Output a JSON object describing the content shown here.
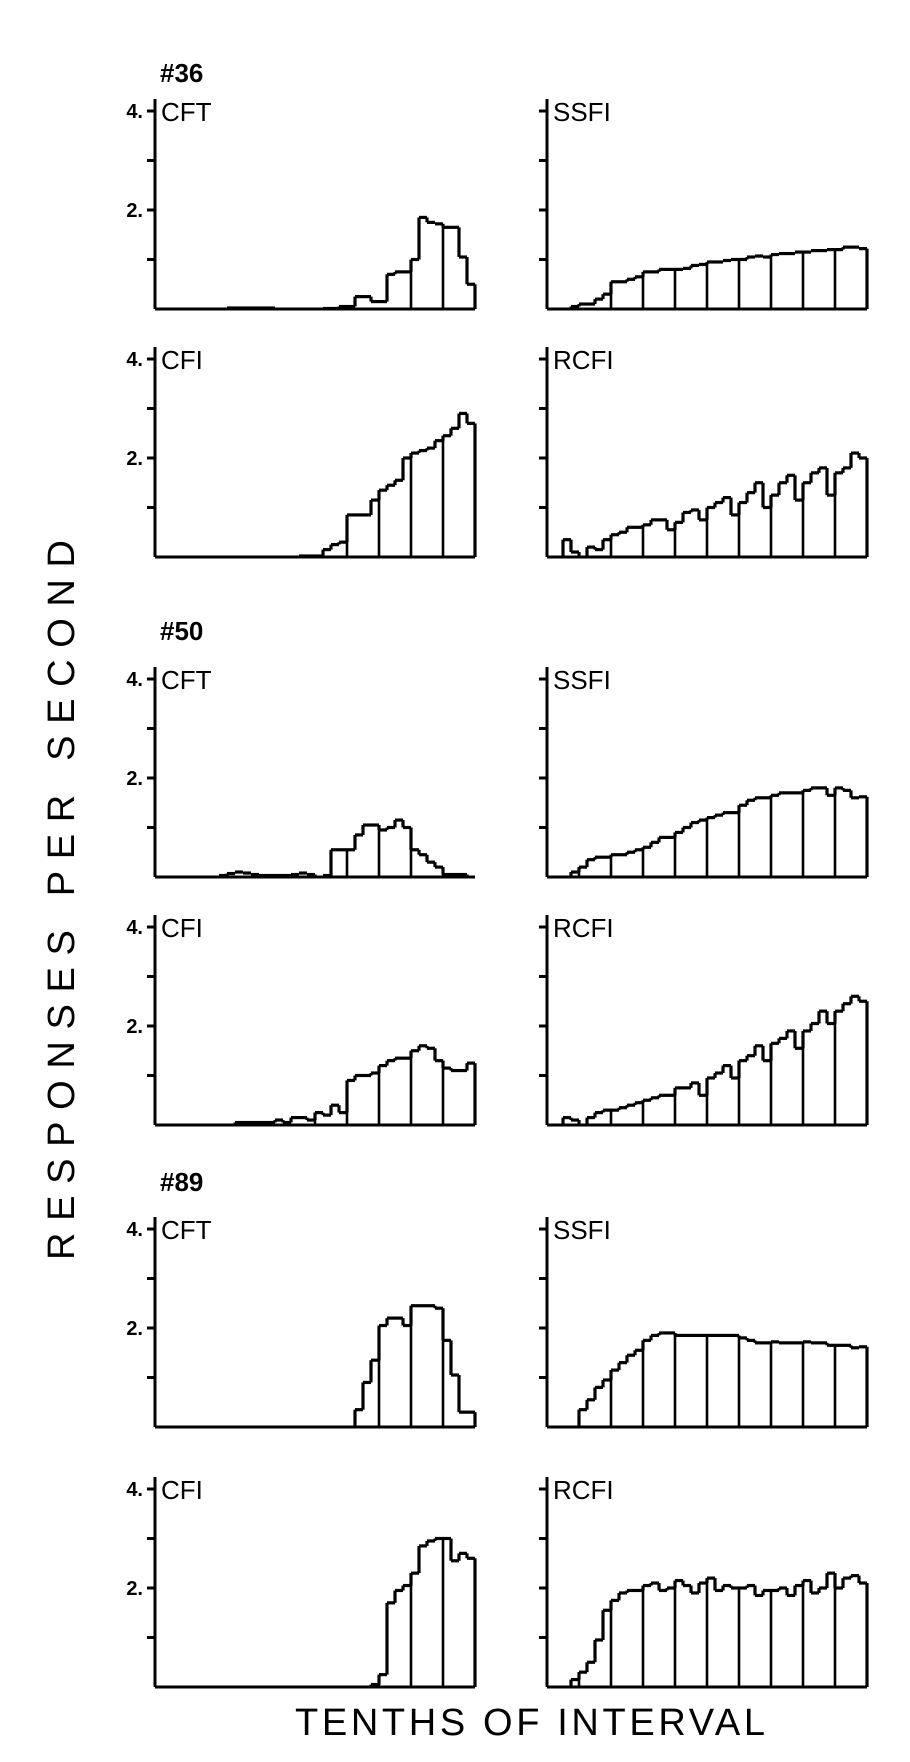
{
  "figure": {
    "ylabel": "RESPONSES PER SECOND",
    "xlabel": "TENTHS OF INTERVAL",
    "subjects": [
      "#36",
      "#50",
      "#89"
    ]
  },
  "chart_data": [
    {
      "type": "bar",
      "subject": "#36",
      "title": "CFT",
      "yticks": [
        "4.",
        "2."
      ],
      "ylim": [
        0,
        4
      ],
      "grid": false,
      "values": [
        0,
        0,
        0,
        0,
        0,
        0,
        0,
        0,
        0,
        0.02,
        0.02,
        0.02,
        0.02,
        0.02,
        0.02,
        0,
        0,
        0,
        0,
        0,
        0,
        0.01,
        0.01,
        0.05,
        0.05,
        0.25,
        0.25,
        0.15,
        0.15,
        0.7,
        0.75,
        0.75,
        1.0,
        1.85,
        1.75,
        1.72,
        1.65,
        1.65,
        1.05,
        0.5
      ],
      "bin_dividers": [
        4,
        8,
        12,
        16,
        20,
        24,
        28,
        32,
        36
      ]
    },
    {
      "type": "bar",
      "subject": "#36",
      "title": "SSFI",
      "yticks": [],
      "ylim": [
        0,
        4
      ],
      "grid": false,
      "values": [
        0,
        0,
        0,
        0.05,
        0.1,
        0.1,
        0.2,
        0.3,
        0.55,
        0.55,
        0.6,
        0.65,
        0.75,
        0.75,
        0.8,
        0.8,
        0.8,
        0.82,
        0.88,
        0.9,
        0.95,
        0.95,
        0.98,
        1.0,
        1.0,
        1.05,
        1.07,
        1.05,
        1.1,
        1.12,
        1.12,
        1.15,
        1.15,
        1.18,
        1.18,
        1.2,
        1.2,
        1.25,
        1.25,
        1.22
      ],
      "bin_dividers": [
        4,
        8,
        12,
        16,
        20,
        24,
        28,
        32,
        36
      ]
    },
    {
      "type": "bar",
      "subject": "#36",
      "title": "CFI",
      "yticks": [
        "4.",
        "2."
      ],
      "ylim": [
        0,
        4
      ],
      "grid": false,
      "values": [
        0,
        0,
        0,
        0,
        0,
        0,
        0,
        0,
        0,
        0,
        0,
        0,
        0,
        0,
        0,
        0,
        0,
        0,
        0.02,
        0.02,
        0.02,
        0.15,
        0.25,
        0.3,
        0.85,
        0.85,
        0.85,
        1.15,
        1.35,
        1.45,
        1.55,
        2.0,
        2.1,
        2.15,
        2.2,
        2.35,
        2.45,
        2.6,
        2.9,
        2.7
      ],
      "bin_dividers": [
        4,
        8,
        12,
        16,
        20,
        24,
        28,
        32,
        36
      ]
    },
    {
      "type": "bar",
      "subject": "#36",
      "title": "RCFI",
      "yticks": [],
      "ylim": [
        0,
        4
      ],
      "grid": false,
      "values": [
        0,
        0,
        0.35,
        0.1,
        0,
        0.2,
        0.15,
        0.35,
        0.45,
        0.5,
        0.6,
        0.6,
        0.65,
        0.75,
        0.75,
        0.55,
        0.7,
        0.9,
        0.95,
        0.75,
        1.0,
        1.1,
        1.2,
        0.85,
        1.1,
        1.3,
        1.5,
        1.0,
        1.25,
        1.5,
        1.65,
        1.15,
        1.5,
        1.7,
        1.8,
        1.25,
        1.7,
        1.8,
        2.1,
        2.0
      ],
      "bin_dividers": [
        4,
        8,
        12,
        16,
        20,
        24,
        28,
        32,
        36
      ]
    },
    {
      "type": "bar",
      "subject": "#50",
      "title": "CFT",
      "yticks": [
        "4.",
        "2."
      ],
      "ylim": [
        0,
        4
      ],
      "grid": false,
      "values": [
        0,
        0,
        0,
        0,
        0,
        0,
        0,
        0,
        0.03,
        0.07,
        0.1,
        0.08,
        0.05,
        0.03,
        0.03,
        0.03,
        0.03,
        0.05,
        0.08,
        0.05,
        0,
        0.03,
        0.55,
        0.55,
        0.55,
        0.85,
        1.05,
        1.05,
        0.95,
        1.0,
        1.15,
        1.0,
        0.55,
        0.45,
        0.3,
        0.2,
        0.05,
        0.05,
        0.05,
        0
      ],
      "bin_dividers": [
        4,
        8,
        12,
        16,
        20,
        24,
        28,
        32,
        36
      ]
    },
    {
      "type": "bar",
      "subject": "#50",
      "title": "SSFI",
      "yticks": [],
      "ylim": [
        0,
        4
      ],
      "grid": false,
      "values": [
        0,
        0,
        0,
        0.1,
        0.2,
        0.35,
        0.4,
        0.4,
        0.45,
        0.45,
        0.5,
        0.55,
        0.6,
        0.7,
        0.8,
        0.8,
        0.9,
        1.0,
        1.1,
        1.15,
        1.2,
        1.25,
        1.3,
        1.3,
        1.45,
        1.55,
        1.6,
        1.6,
        1.65,
        1.7,
        1.7,
        1.7,
        1.75,
        1.8,
        1.8,
        1.65,
        1.8,
        1.75,
        1.6,
        1.62
      ],
      "bin_dividers": [
        4,
        8,
        12,
        16,
        20,
        24,
        28,
        32,
        36
      ]
    },
    {
      "type": "bar",
      "subject": "#50",
      "title": "CFI",
      "yticks": [
        "4.",
        "2."
      ],
      "ylim": [
        0,
        4
      ],
      "grid": false,
      "values": [
        0,
        0,
        0,
        0,
        0,
        0,
        0,
        0,
        0,
        0,
        0.05,
        0.05,
        0.05,
        0.05,
        0.05,
        0.1,
        0.05,
        0.15,
        0.15,
        0.1,
        0.25,
        0.2,
        0.4,
        0.25,
        0.9,
        1.0,
        1.0,
        1.05,
        1.2,
        1.3,
        1.35,
        1.35,
        1.5,
        1.6,
        1.55,
        1.3,
        1.15,
        1.1,
        1.1,
        1.25
      ],
      "bin_dividers": [
        4,
        8,
        12,
        16,
        20,
        24,
        28,
        32,
        36
      ]
    },
    {
      "type": "bar",
      "subject": "#50",
      "title": "RCFI",
      "yticks": [],
      "ylim": [
        0,
        4
      ],
      "grid": false,
      "values": [
        0,
        0,
        0.15,
        0.1,
        0,
        0.15,
        0.25,
        0.3,
        0.3,
        0.35,
        0.4,
        0.45,
        0.5,
        0.55,
        0.6,
        0.6,
        0.75,
        0.75,
        0.85,
        0.6,
        0.95,
        1.05,
        1.2,
        0.95,
        1.3,
        1.4,
        1.6,
        1.3,
        1.65,
        1.75,
        1.9,
        1.55,
        1.9,
        2.05,
        2.3,
        2.05,
        2.3,
        2.45,
        2.6,
        2.5
      ],
      "bin_dividers": [
        4,
        8,
        12,
        16,
        20,
        24,
        28,
        32,
        36
      ]
    },
    {
      "type": "bar",
      "subject": "#89",
      "title": "CFT",
      "yticks": [
        "4.",
        "2."
      ],
      "ylim": [
        0,
        4
      ],
      "grid": false,
      "values": [
        0,
        0,
        0,
        0,
        0,
        0,
        0,
        0,
        0,
        0,
        0,
        0,
        0,
        0,
        0,
        0,
        0,
        0,
        0,
        0,
        0,
        0,
        0,
        0,
        0,
        0.35,
        0.9,
        1.35,
        2.05,
        2.2,
        2.2,
        2.05,
        2.45,
        2.45,
        2.45,
        2.4,
        1.75,
        1.05,
        0.3,
        0.3
      ],
      "bin_dividers": [
        4,
        8,
        12,
        16,
        20,
        24,
        28,
        32,
        36
      ]
    },
    {
      "type": "bar",
      "subject": "#89",
      "title": "SSFI",
      "yticks": [],
      "ylim": [
        0,
        4
      ],
      "grid": false,
      "values": [
        0,
        0,
        0,
        0,
        0.35,
        0.55,
        0.8,
        0.95,
        1.15,
        1.3,
        1.45,
        1.55,
        1.75,
        1.85,
        1.9,
        1.9,
        1.85,
        1.85,
        1.85,
        1.85,
        1.85,
        1.85,
        1.85,
        1.85,
        1.8,
        1.75,
        1.7,
        1.7,
        1.72,
        1.7,
        1.7,
        1.7,
        1.72,
        1.7,
        1.7,
        1.65,
        1.65,
        1.65,
        1.6,
        1.62
      ],
      "bin_dividers": [
        4,
        8,
        12,
        16,
        20,
        24,
        28,
        32,
        36
      ]
    },
    {
      "type": "bar",
      "subject": "#89",
      "title": "CFI",
      "yticks": [
        "4.",
        "2."
      ],
      "ylim": [
        0,
        4
      ],
      "grid": false,
      "values": [
        0,
        0,
        0,
        0,
        0,
        0,
        0,
        0,
        0,
        0,
        0,
        0,
        0,
        0,
        0,
        0,
        0,
        0,
        0,
        0,
        0,
        0,
        0,
        0,
        0,
        0,
        0,
        0.05,
        0.25,
        1.7,
        1.95,
        2.05,
        2.3,
        2.85,
        2.95,
        3.0,
        3.0,
        2.55,
        2.7,
        2.6
      ],
      "bin_dividers": [
        4,
        8,
        12,
        16,
        20,
        24,
        28,
        32,
        36
      ]
    },
    {
      "type": "bar",
      "subject": "#89",
      "title": "RCFI",
      "yticks": [],
      "ylim": [
        0,
        4
      ],
      "grid": false,
      "values": [
        0,
        0,
        0,
        0.15,
        0.3,
        0.5,
        0.95,
        1.55,
        1.75,
        1.9,
        1.95,
        1.95,
        2.05,
        2.1,
        1.95,
        2.0,
        2.15,
        2.05,
        1.9,
        2.1,
        2.2,
        1.95,
        2.05,
        2.0,
        2.0,
        2.05,
        1.85,
        1.95,
        1.95,
        2.0,
        1.85,
        2.05,
        2.15,
        1.9,
        2.0,
        2.3,
        2.0,
        2.2,
        2.25,
        2.1
      ],
      "bin_dividers": [
        4,
        8,
        12,
        16,
        20,
        24,
        28,
        32,
        36
      ]
    }
  ]
}
